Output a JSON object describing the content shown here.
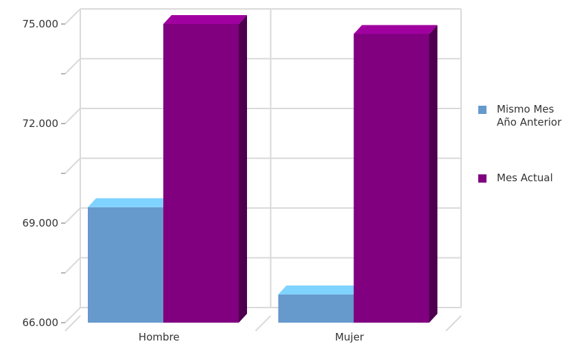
{
  "chart_data": {
    "type": "bar",
    "style": "3d-clustered-column",
    "categories": [
      "Hombre",
      "Mujer"
    ],
    "series": [
      {
        "name": "Mismo Mes\nAño Anterior",
        "values": [
          69480,
          66850
        ],
        "color": "#6699CC",
        "top_color": "#7FD3FF",
        "side_color": "#4F7FAF"
      },
      {
        "name": "Mes Actual",
        "values": [
          75000,
          74700
        ],
        "color": "#800080",
        "top_color": "#A000A0",
        "side_color": "#4E004E"
      }
    ],
    "ylim": [
      66000,
      75000
    ],
    "yticks": [
      {
        "value": 66000,
        "label": "66.000"
      },
      {
        "value": 69000,
        "label": "69.000"
      },
      {
        "value": 72000,
        "label": "72.000"
      },
      {
        "value": 75000,
        "label": "75.000"
      }
    ],
    "minor_yticks": [
      67500,
      70500,
      73500
    ],
    "grid": true,
    "legend_position": "right",
    "title": "",
    "xlabel": "",
    "ylabel": ""
  }
}
